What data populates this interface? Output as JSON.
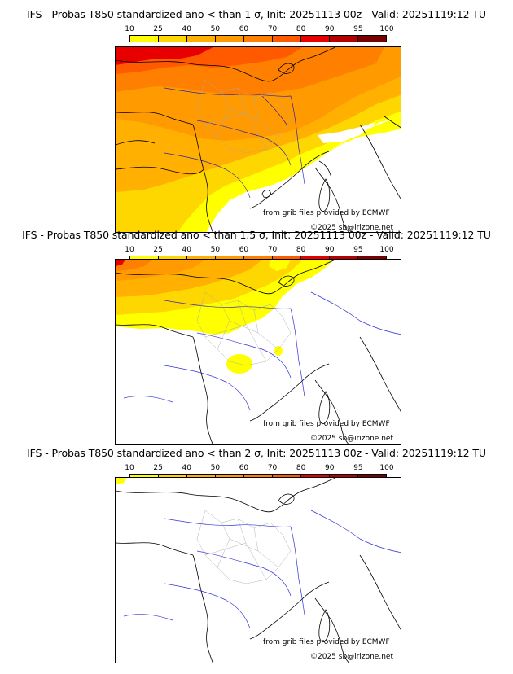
{
  "colorbar": {
    "ticks": [
      "10",
      "25",
      "40",
      "50",
      "60",
      "70",
      "80",
      "90",
      "95",
      "100"
    ],
    "colors": [
      "#ffff00",
      "#ffd700",
      "#ffb000",
      "#ff9a00",
      "#ff8000",
      "#ff5a00",
      "#e80000",
      "#b40000",
      "#780000"
    ]
  },
  "panels": [
    {
      "title": "IFS - Probas T850  standardized ano < than 1 σ, Init: 20251113 00z - Valid: 20251119:12 TU",
      "source": "from grib files provided by ECMWF",
      "copyright": "©2025 sb@irizone.net",
      "coverage": "high"
    },
    {
      "title": "IFS - Probas T850  standardized ano < than 1.5 σ, Init: 20251113 00z - Valid: 20251119:12 TU",
      "source": "from grib files provided by ECMWF",
      "copyright": "©2025 sb@irizone.net",
      "coverage": "medium"
    },
    {
      "title": "IFS - Probas T850  standardized ano < than 2 σ, Init: 20251113 00z - Valid: 20251119:12 TU",
      "source": "from grib files provided by ECMWF",
      "copyright": "©2025 sb@irizone.net",
      "coverage": "low"
    }
  ],
  "map_colors": {
    "coast": "#000000",
    "rivers": "#0000cc",
    "departments": "#aaaaaa"
  }
}
